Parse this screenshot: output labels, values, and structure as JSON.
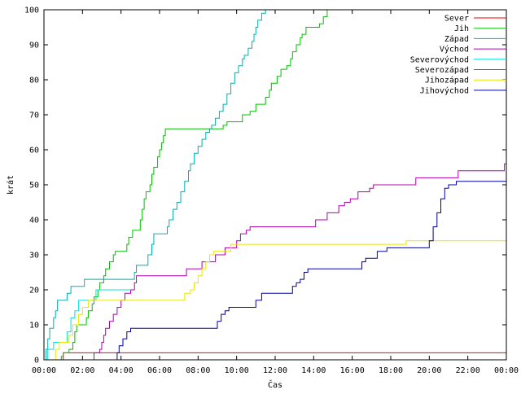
{
  "chart_data": {
    "type": "line",
    "title": "",
    "xlabel": "Čas",
    "ylabel": "krát",
    "xlim": [
      0,
      24
    ],
    "ylim": [
      0,
      100
    ],
    "x_ticks": [
      {
        "value": 0,
        "label": "00:00"
      },
      {
        "value": 2,
        "label": "02:00"
      },
      {
        "value": 4,
        "label": "04:00"
      },
      {
        "value": 6,
        "label": "06:00"
      },
      {
        "value": 8,
        "label": "08:00"
      },
      {
        "value": 10,
        "label": "10:00"
      },
      {
        "value": 12,
        "label": "12:00"
      },
      {
        "value": 14,
        "label": "14:00"
      },
      {
        "value": 16,
        "label": "16:00"
      },
      {
        "value": 18,
        "label": "18:00"
      },
      {
        "value": 20,
        "label": "20:00"
      },
      {
        "value": 22,
        "label": "22:00"
      },
      {
        "value": 24,
        "label": "00:00"
      }
    ],
    "y_ticks": [
      0,
      10,
      20,
      30,
      40,
      50,
      60,
      70,
      80,
      90,
      100
    ],
    "grid": false,
    "legend_position": "top-right",
    "series": [
      {
        "name": "Sever",
        "color": "#ff0000",
        "step": true,
        "points": [
          [
            0.9,
            0
          ],
          [
            1.0,
            2
          ],
          [
            24,
            2
          ]
        ]
      },
      {
        "name": "Jih",
        "color": "#00c000",
        "step": true,
        "points": [
          [
            0.7,
            0
          ],
          [
            0.9,
            1
          ],
          [
            1.0,
            2
          ],
          [
            1.3,
            3
          ],
          [
            1.5,
            5
          ],
          [
            1.6,
            8
          ],
          [
            1.7,
            10
          ],
          [
            2.1,
            10
          ],
          [
            2.2,
            12
          ],
          [
            2.3,
            14
          ],
          [
            2.5,
            16
          ],
          [
            2.6,
            18
          ],
          [
            2.8,
            20
          ],
          [
            2.9,
            22
          ],
          [
            3.1,
            24
          ],
          [
            3.2,
            26
          ],
          [
            3.4,
            28
          ],
          [
            3.6,
            30
          ],
          [
            3.7,
            31
          ],
          [
            4.2,
            31
          ],
          [
            4.3,
            33
          ],
          [
            4.4,
            35
          ],
          [
            4.6,
            37
          ],
          [
            4.9,
            37
          ],
          [
            5.0,
            40
          ],
          [
            5.1,
            43
          ],
          [
            5.2,
            46
          ],
          [
            5.3,
            48
          ],
          [
            5.5,
            50
          ],
          [
            5.6,
            53
          ],
          [
            5.7,
            55
          ],
          [
            5.8,
            55
          ],
          [
            5.9,
            58
          ],
          [
            6.0,
            60
          ],
          [
            6.1,
            62
          ],
          [
            6.2,
            64
          ],
          [
            6.3,
            66
          ],
          [
            9.2,
            66
          ],
          [
            9.3,
            67
          ],
          [
            9.5,
            68
          ],
          [
            10.2,
            68
          ],
          [
            10.3,
            70
          ],
          [
            10.6,
            70
          ],
          [
            10.7,
            71
          ],
          [
            11.0,
            73
          ],
          [
            11.4,
            73
          ],
          [
            11.5,
            75
          ],
          [
            11.7,
            77
          ],
          [
            11.8,
            79
          ],
          [
            12.1,
            81
          ],
          [
            12.3,
            83
          ],
          [
            12.6,
            84
          ],
          [
            12.8,
            86
          ],
          [
            12.9,
            88
          ],
          [
            13.1,
            90
          ],
          [
            13.3,
            92
          ],
          [
            13.4,
            93
          ],
          [
            13.6,
            95
          ],
          [
            14.1,
            95
          ],
          [
            14.3,
            96
          ],
          [
            14.5,
            98
          ],
          [
            14.7,
            100
          ]
        ]
      },
      {
        "name": "Západ",
        "color": "#00b0b0",
        "step": true,
        "points": [
          [
            0,
            0
          ],
          [
            0.1,
            3
          ],
          [
            0.2,
            6
          ],
          [
            0.3,
            9
          ],
          [
            0.5,
            12
          ],
          [
            0.6,
            14
          ],
          [
            0.7,
            17
          ],
          [
            1.1,
            17
          ],
          [
            1.2,
            19
          ],
          [
            1.4,
            21
          ],
          [
            1.9,
            21
          ],
          [
            2.1,
            23
          ],
          [
            4.6,
            23
          ],
          [
            4.7,
            25
          ],
          [
            4.8,
            27
          ],
          [
            5.3,
            27
          ],
          [
            5.4,
            30
          ],
          [
            5.6,
            33
          ],
          [
            5.7,
            36
          ],
          [
            6.3,
            36
          ],
          [
            6.4,
            38
          ],
          [
            6.5,
            40
          ],
          [
            6.7,
            43
          ],
          [
            6.9,
            45
          ],
          [
            7.1,
            48
          ],
          [
            7.3,
            51
          ],
          [
            7.5,
            54
          ],
          [
            7.6,
            56
          ],
          [
            7.8,
            59
          ],
          [
            8.0,
            61
          ],
          [
            8.2,
            63
          ],
          [
            8.4,
            65
          ],
          [
            8.6,
            66
          ],
          [
            8.7,
            67
          ],
          [
            8.9,
            69
          ],
          [
            9.1,
            71
          ],
          [
            9.3,
            73
          ],
          [
            9.5,
            76
          ],
          [
            9.7,
            79
          ],
          [
            9.9,
            82
          ],
          [
            10.1,
            84
          ],
          [
            10.3,
            86
          ],
          [
            10.4,
            87
          ],
          [
            10.6,
            89
          ],
          [
            10.8,
            91
          ],
          [
            10.9,
            93
          ],
          [
            11.0,
            95
          ],
          [
            11.1,
            97
          ],
          [
            11.3,
            99
          ],
          [
            11.5,
            100
          ]
        ]
      },
      {
        "name": "Východ",
        "color": "#b000b0",
        "step": true,
        "points": [
          [
            2.5,
            0
          ],
          [
            2.6,
            2
          ],
          [
            2.9,
            3
          ],
          [
            3.0,
            5
          ],
          [
            3.1,
            7
          ],
          [
            3.2,
            9
          ],
          [
            3.4,
            11
          ],
          [
            3.6,
            13
          ],
          [
            3.8,
            15
          ],
          [
            4.0,
            17
          ],
          [
            4.2,
            19
          ],
          [
            4.5,
            20
          ],
          [
            4.7,
            22
          ],
          [
            4.8,
            24
          ],
          [
            7.2,
            24
          ],
          [
            7.4,
            26
          ],
          [
            8.0,
            26
          ],
          [
            8.2,
            28
          ],
          [
            8.7,
            28
          ],
          [
            8.9,
            30
          ],
          [
            9.2,
            30
          ],
          [
            9.4,
            32
          ],
          [
            9.8,
            32
          ],
          [
            10.0,
            34
          ],
          [
            10.2,
            36
          ],
          [
            10.5,
            37
          ],
          [
            10.7,
            38
          ],
          [
            14.0,
            38
          ],
          [
            14.1,
            40
          ],
          [
            14.5,
            40
          ],
          [
            14.7,
            42
          ],
          [
            15.2,
            42
          ],
          [
            15.3,
            44
          ],
          [
            15.6,
            45
          ],
          [
            15.9,
            46
          ],
          [
            16.3,
            48
          ],
          [
            16.7,
            48
          ],
          [
            16.9,
            49
          ],
          [
            17.1,
            50
          ],
          [
            19.1,
            50
          ],
          [
            19.3,
            52
          ],
          [
            21.3,
            52
          ],
          [
            21.5,
            54
          ],
          [
            23.8,
            54
          ],
          [
            23.9,
            56
          ],
          [
            24,
            59
          ]
        ]
      },
      {
        "name": "Severovýchod",
        "color": "#00e0e0",
        "step": true,
        "points": [
          [
            0,
            0
          ],
          [
            0.2,
            3
          ],
          [
            0.5,
            5
          ],
          [
            1.0,
            5
          ],
          [
            1.2,
            8
          ],
          [
            1.4,
            12
          ],
          [
            1.6,
            14
          ],
          [
            1.8,
            17
          ],
          [
            2.6,
            17
          ],
          [
            2.7,
            20
          ],
          [
            4.5,
            20
          ]
        ]
      },
      {
        "name": "Severozápad",
        "color": "#a05000",
        "step": true,
        "points": []
      },
      {
        "name": "Jihozápad",
        "color": "#e8e800",
        "step": true,
        "points": [
          [
            0.4,
            0
          ],
          [
            0.6,
            3
          ],
          [
            0.8,
            5
          ],
          [
            1.1,
            5
          ],
          [
            1.3,
            7
          ],
          [
            1.5,
            10
          ],
          [
            1.8,
            13
          ],
          [
            2.0,
            15
          ],
          [
            2.3,
            17
          ],
          [
            7.1,
            17
          ],
          [
            7.3,
            19
          ],
          [
            7.6,
            20
          ],
          [
            7.8,
            22
          ],
          [
            8.0,
            24
          ],
          [
            8.2,
            26
          ],
          [
            8.4,
            28
          ],
          [
            8.6,
            30
          ],
          [
            8.8,
            31
          ],
          [
            9.5,
            31
          ],
          [
            9.7,
            33
          ],
          [
            18.6,
            33
          ],
          [
            18.8,
            34
          ],
          [
            24,
            34
          ]
        ]
      },
      {
        "name": "Jihovýchod",
        "color": "#0000a0",
        "step": true,
        "points": [
          [
            3.7,
            0
          ],
          [
            3.8,
            2
          ],
          [
            3.9,
            4
          ],
          [
            4.1,
            6
          ],
          [
            4.3,
            8
          ],
          [
            4.5,
            9
          ],
          [
            8.9,
            9
          ],
          [
            9.0,
            11
          ],
          [
            9.2,
            13
          ],
          [
            9.4,
            14
          ],
          [
            9.6,
            15
          ],
          [
            10.8,
            15
          ],
          [
            11.0,
            17
          ],
          [
            11.3,
            19
          ],
          [
            12.7,
            19
          ],
          [
            12.9,
            21
          ],
          [
            13.1,
            22
          ],
          [
            13.3,
            23
          ],
          [
            13.5,
            25
          ],
          [
            13.7,
            26
          ],
          [
            16.3,
            26
          ],
          [
            16.5,
            28
          ],
          [
            16.7,
            29
          ],
          [
            17.1,
            29
          ],
          [
            17.3,
            31
          ],
          [
            17.6,
            31
          ],
          [
            17.8,
            32
          ],
          [
            19.9,
            32
          ],
          [
            20.0,
            34
          ],
          [
            20.2,
            38
          ],
          [
            20.4,
            42
          ],
          [
            20.6,
            46
          ],
          [
            20.8,
            49
          ],
          [
            21.0,
            50
          ],
          [
            21.2,
            50
          ],
          [
            21.4,
            51
          ],
          [
            24,
            51
          ]
        ]
      }
    ]
  }
}
